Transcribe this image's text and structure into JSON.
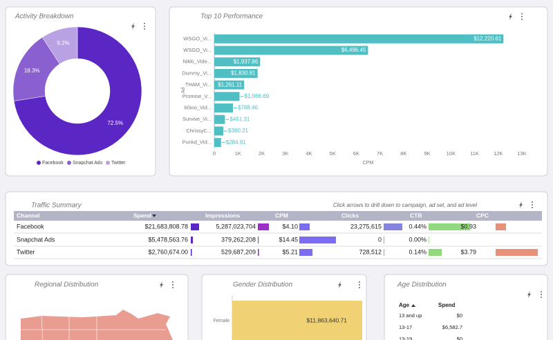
{
  "chart_data": [
    {
      "type": "pie",
      "title": "Activity Breakdown",
      "categories": [
        "Facebook",
        "Snapchat Ads",
        "Twitter"
      ],
      "values": [
        72.5,
        18.3,
        9.2
      ],
      "value_labels": [
        "72.5%",
        "18.3%",
        "9.2%"
      ],
      "colors": [
        "#5a26c4",
        "#8a5fd0",
        "#b9a2e4"
      ],
      "legend": "bottom"
    },
    {
      "type": "hbar",
      "title": "Top 10 Performance",
      "x_label": "CPM",
      "y_label": "Ad",
      "categories": [
        "WSGO_Vi...",
        "WSGO_Vi...",
        "Nikki_Vide...",
        "Dummy_Vi...",
        "THAM_Vi...",
        "Promise_V...",
        "60ino_Vid...",
        "Survive_Vi...",
        "ChrissyC...",
        "Punkd_Vid..."
      ],
      "values": [
        12220.61,
        6496.45,
        1937.86,
        1830.81,
        1261.11,
        1066.69,
        788.46,
        451.31,
        380.21,
        284.91
      ],
      "value_labels": [
        "$12,220.61",
        "$6,496.45",
        "$1,937.86",
        "$1,830.81",
        "$1,261.11",
        "$1,066.69",
        "$788.46",
        "$451.31",
        "$380.21",
        "$284.91"
      ],
      "color": "#4fbfc4",
      "xlim": [
        0,
        13000
      ],
      "xticks": [
        0,
        {
          "value": 1000,
          "label": "1K"
        },
        {
          "value": 2000,
          "label": "2K"
        },
        {
          "value": 3000,
          "label": "3K"
        },
        {
          "value": 4000,
          "label": "4K"
        },
        {
          "value": 5000,
          "label": "5K"
        },
        {
          "value": 6000,
          "label": "6K"
        },
        {
          "value": 7000,
          "label": "7K"
        },
        {
          "value": 8000,
          "label": "8K"
        },
        {
          "value": 9000,
          "label": "9K"
        },
        {
          "value": 10000,
          "label": "10K"
        },
        {
          "value": 11000,
          "label": "11K"
        },
        {
          "value": 12000,
          "label": "12K"
        },
        {
          "value": 13000,
          "label": "13K"
        }
      ]
    },
    {
      "type": "hbar-simple",
      "title": "Gender Distribution",
      "categories": [
        "Female"
      ],
      "values": [
        11863640.71
      ],
      "value_labels": [
        "$11,863,640.71"
      ],
      "color": "#f0d275"
    }
  ],
  "traffic_summary": {
    "title": "Traffic Summary",
    "note": "Click arrows to drill down to campaign, ad set, and ad level",
    "channel_header": "Channel",
    "channels": [
      "Facebook",
      "Snapchat Ads",
      "Twitter"
    ],
    "columns": [
      {
        "name": "Spend",
        "color": "#5a26c4",
        "values": [
          21683808.78,
          5478563.76,
          2760674.0
        ],
        "value_labels": [
          "$21,683,808.78",
          "$5,478,563.76",
          "$2,760,674.00"
        ]
      },
      {
        "name": "Impressions",
        "color": "#9b30c8",
        "values": [
          5287023704,
          379262208,
          529687209
        ],
        "value_labels": [
          "5,287,023,704",
          "379,262,208",
          "529,687,209"
        ]
      },
      {
        "name": "CPM",
        "color": "#7b6cf0",
        "values": [
          4.1,
          14.45,
          5.21
        ],
        "value_labels": [
          "$4.10",
          "$14.45",
          "$5.21"
        ]
      },
      {
        "name": "Clicks",
        "color": "#8585e0",
        "values": [
          23275615,
          0,
          728512
        ],
        "value_labels": [
          "23,275,615",
          "0",
          "728,512"
        ]
      },
      {
        "name": "CTR",
        "color": "#92d87f",
        "values": [
          0.44,
          0.0,
          0.14
        ],
        "value_labels": [
          "0.44%",
          "0.00%",
          "0.14%"
        ]
      },
      {
        "name": "CPC",
        "color": "#e8917a",
        "values": [
          0.93,
          null,
          3.79
        ],
        "value_labels": [
          "$0.93",
          null,
          "$3.79"
        ]
      }
    ]
  },
  "regional_distribution": {
    "title": "Regional Distribution"
  },
  "age_distribution": {
    "title": "Age Distribution",
    "columns": [
      "Age",
      "Spend"
    ],
    "rows": [
      [
        "13 and up",
        "$0"
      ],
      [
        "13-17",
        "$6,582.7"
      ],
      [
        "13-19",
        "$0"
      ]
    ]
  }
}
